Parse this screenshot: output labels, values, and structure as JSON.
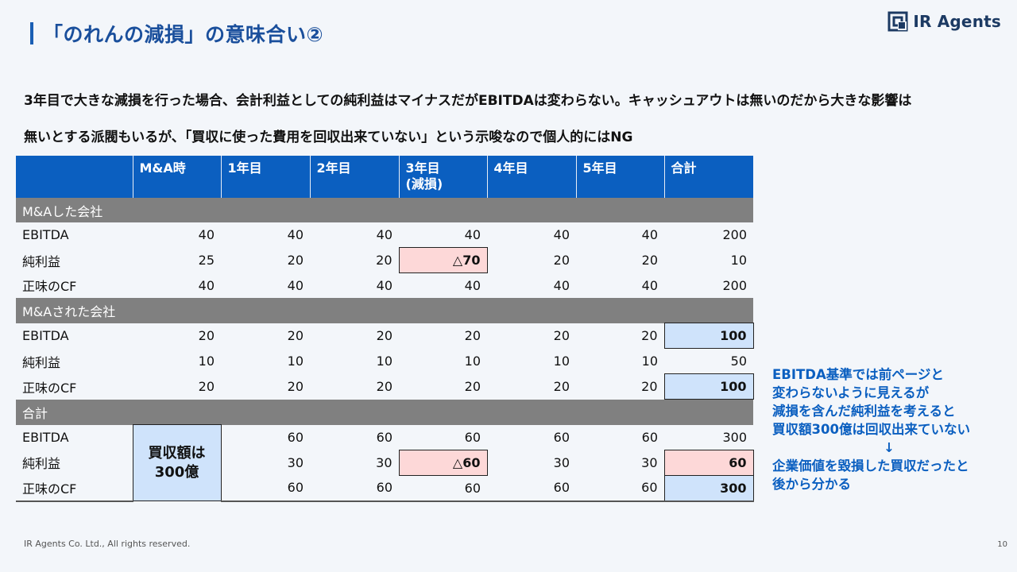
{
  "title": "「のれんの減損」の意味合い②",
  "logo": {
    "text": "IR Agents"
  },
  "intro": {
    "line1": "3年目で大きな減損を行った場合、会計利益としての純利益はマイナスだがEBITDAは変わらない。キャッシュアウトは無いのだから大きな影響は",
    "line2": "無いとする派閥もいるが、「買収に使った費用を回収出来ていない」という示唆なので個人的にはNG"
  },
  "table": {
    "headers": [
      "",
      "M&A時",
      "1年目",
      "2年目",
      "3年目",
      "4年目",
      "5年目",
      "合計"
    ],
    "header_sub3": "(減損)",
    "sections": [
      {
        "name": "M&Aした会社",
        "rows": [
          {
            "label": "EBITDA",
            "values": [
              "40",
              "40",
              "40",
              "40",
              "40",
              "40",
              "200"
            ]
          },
          {
            "label": "純利益",
            "values": [
              "25",
              "20",
              "20",
              "△70",
              "20",
              "20",
              "10"
            ]
          },
          {
            "label": "正味のCF",
            "values": [
              "40",
              "40",
              "40",
              "40",
              "40",
              "40",
              "200"
            ]
          }
        ]
      },
      {
        "name": "M&Aされた会社",
        "rows": [
          {
            "label": "EBITDA",
            "values": [
              "20",
              "20",
              "20",
              "20",
              "20",
              "20",
              "100"
            ]
          },
          {
            "label": "純利益",
            "values": [
              "10",
              "10",
              "10",
              "10",
              "10",
              "10",
              "50"
            ]
          },
          {
            "label": "正味のCF",
            "values": [
              "20",
              "20",
              "20",
              "20",
              "20",
              "20",
              "100"
            ]
          }
        ]
      },
      {
        "name": "合計",
        "merged_label_line1": "買収額は",
        "merged_label_line2": "300億",
        "rows": [
          {
            "label": "EBITDA",
            "values": [
              "60",
              "60",
              "60",
              "60",
              "60",
              "300"
            ]
          },
          {
            "label": "純利益",
            "values": [
              "30",
              "30",
              "△60",
              "30",
              "30",
              "60"
            ]
          },
          {
            "label": "正味のCF",
            "values": [
              "60",
              "60",
              "60",
              "60",
              "60",
              "300"
            ]
          }
        ]
      }
    ]
  },
  "note": {
    "line1": "EBITDA基準では前ページと",
    "line2": "変わらないように見えるが",
    "line3": "減損を含んだ純利益を考えると",
    "line4": "買収額300億は回収出来ていない",
    "arrow": "↓",
    "line5": "企業価値を毀損した買収だったと",
    "line6": "後から分かる"
  },
  "footer": "IR Agents Co. Ltd., All rights reserved.",
  "page_number": "10",
  "colors": {
    "header_blue": "#0b5fc0",
    "section_gray": "#808080",
    "highlight_pink": "#fdd8d8",
    "highlight_blue": "#cfe3fb",
    "note_blue": "#0b5fc0"
  }
}
